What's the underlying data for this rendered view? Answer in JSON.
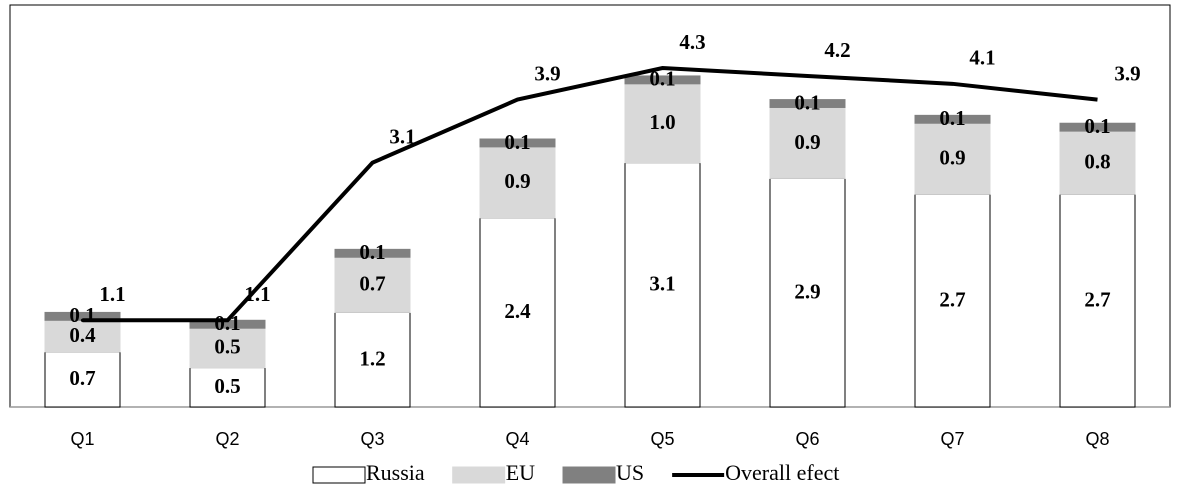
{
  "chart_data": {
    "type": "bar",
    "categories": [
      "Q1",
      "Q2",
      "Q3",
      "Q4",
      "Q5",
      "Q6",
      "Q7",
      "Q8"
    ],
    "series": [
      {
        "name": "Russia",
        "color": "#ffffff",
        "values": [
          0.7,
          0.5,
          1.2,
          2.4,
          3.1,
          2.9,
          2.7,
          2.7
        ]
      },
      {
        "name": "EU",
        "color": "#d9d9d9",
        "values": [
          0.4,
          0.5,
          0.7,
          0.9,
          1.0,
          0.9,
          0.9,
          0.8
        ],
        "value_labels": [
          "0.4",
          "0.5",
          "0.7",
          "0.9",
          "1.0",
          "0.9",
          "0.9",
          "0.8"
        ]
      },
      {
        "name": "US",
        "color": "#808080",
        "values": [
          0.1,
          0.1,
          0.1,
          0.1,
          0.1,
          0.1,
          0.1,
          0.1
        ]
      },
      {
        "name": "Overall efect",
        "type": "line",
        "color": "#000000",
        "values": [
          1.1,
          1.1,
          3.1,
          3.9,
          4.3,
          4.2,
          4.1,
          3.9
        ]
      }
    ],
    "ylim": [
      0,
      5.1
    ],
    "stacked": true,
    "legend": "bottom"
  }
}
